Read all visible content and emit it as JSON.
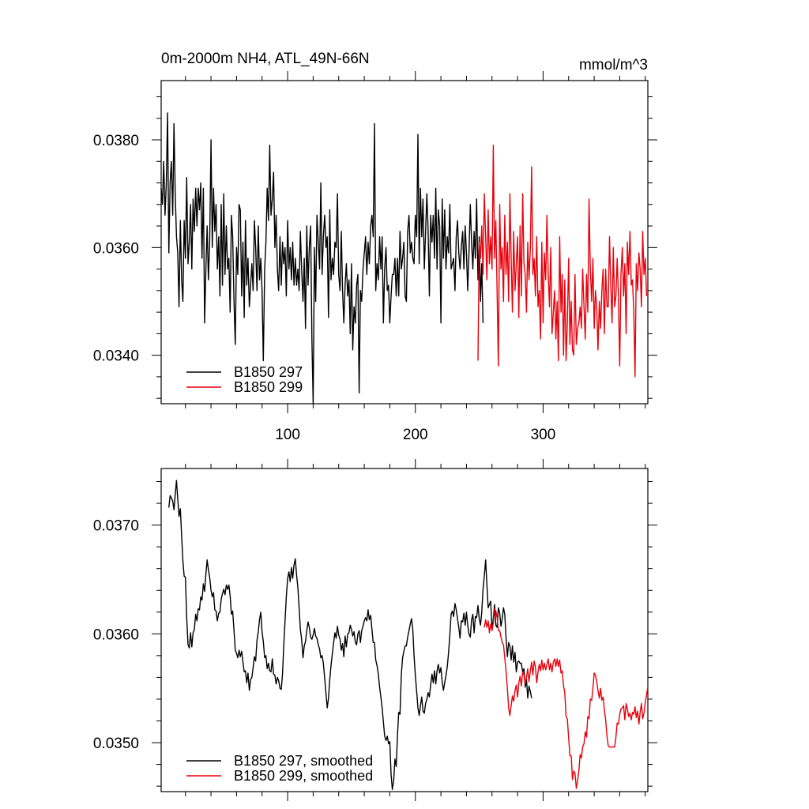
{
  "chart_data": [
    {
      "type": "line",
      "title_left": "0m-2000m NH4, ATL_49N-66N",
      "title_right": "mmol/m^3",
      "xlim": [
        1,
        382
      ],
      "ylim": [
        0.0331,
        0.0391
      ],
      "x_ticks": [
        100,
        200,
        300
      ],
      "x_tick_labels": [
        "100",
        "200",
        "300"
      ],
      "y_ticks": [
        0.034,
        0.036,
        0.038
      ],
      "y_tick_labels": [
        "0.0340",
        "0.0360",
        "0.0380"
      ],
      "legend_position": "bottom-left",
      "series": [
        {
          "name": "B1850 297",
          "color": "#000000",
          "x_start": 1,
          "values": [
            0.0371,
            0.0368,
            0.0376,
            0.0366,
            0.0372,
            0.0385,
            0.0359,
            0.0372,
            0.0376,
            0.0366,
            0.0383,
            0.037,
            0.0362,
            0.0359,
            0.0349,
            0.0365,
            0.0354,
            0.035,
            0.0365,
            0.0358,
            0.0373,
            0.0357,
            0.0361,
            0.0368,
            0.0356,
            0.0369,
            0.0363,
            0.0371,
            0.0364,
            0.0371,
            0.0367,
            0.0372,
            0.0358,
            0.0371,
            0.0346,
            0.0356,
            0.0364,
            0.0354,
            0.0361,
            0.038,
            0.036,
            0.0371,
            0.0363,
            0.0368,
            0.0356,
            0.0362,
            0.0351,
            0.0368,
            0.0353,
            0.037,
            0.0355,
            0.0364,
            0.0356,
            0.0358,
            0.0348,
            0.0366,
            0.0362,
            0.035,
            0.0342,
            0.036,
            0.0355,
            0.0368,
            0.0367,
            0.0351,
            0.0361,
            0.0347,
            0.0365,
            0.0353,
            0.0358,
            0.0349,
            0.0353,
            0.0357,
            0.0352,
            0.0365,
            0.036,
            0.0352,
            0.0364,
            0.0354,
            0.0358,
            0.0352,
            0.0339,
            0.0356,
            0.0361,
            0.0371,
            0.0365,
            0.0379,
            0.0366,
            0.0369,
            0.0374,
            0.036,
            0.0366,
            0.0356,
            0.0352,
            0.0362,
            0.0353,
            0.0361,
            0.0357,
            0.036,
            0.0351,
            0.0365,
            0.0356,
            0.036,
            0.0354,
            0.0361,
            0.0353,
            0.0358,
            0.0353,
            0.0356,
            0.0352,
            0.0363,
            0.0356,
            0.035,
            0.0358,
            0.0345,
            0.0364,
            0.0353,
            0.036,
            0.0364,
            0.0343,
            0.0331,
            0.036,
            0.035,
            0.0366,
            0.0361,
            0.0356,
            0.0372,
            0.0355,
            0.0362,
            0.0366,
            0.036,
            0.0362,
            0.0347,
            0.0367,
            0.0354,
            0.0358,
            0.0355,
            0.0361,
            0.036,
            0.037,
            0.0355,
            0.0352,
            0.0363,
            0.0352,
            0.0346,
            0.0353,
            0.0357,
            0.0351,
            0.0354,
            0.0344,
            0.0357,
            0.0341,
            0.0349,
            0.0346,
            0.0353,
            0.0355,
            0.0333,
            0.0352,
            0.035,
            0.0356,
            0.0359,
            0.0362,
            0.0355,
            0.0361,
            0.0357,
            0.0364,
            0.0366,
            0.0362,
            0.0383,
            0.0352,
            0.0357,
            0.0354,
            0.0362,
            0.0356,
            0.0362,
            0.0346,
            0.0356,
            0.036,
            0.0352,
            0.0353,
            0.0346,
            0.0351,
            0.0355,
            0.0355,
            0.0358,
            0.0351,
            0.0358,
            0.0351,
            0.0363,
            0.0356,
            0.0358,
            0.0361,
            0.0351,
            0.035,
            0.0363,
            0.0366,
            0.0359,
            0.0361,
            0.0358,
            0.0357,
            0.0366,
            0.0362,
            0.0381,
            0.0357,
            0.0371,
            0.0362,
            0.0369,
            0.0356,
            0.0363,
            0.037,
            0.0363,
            0.0351,
            0.0366,
            0.0361,
            0.0366,
            0.0358,
            0.0371,
            0.0356,
            0.0367,
            0.0364,
            0.0346,
            0.0369,
            0.0358,
            0.0367,
            0.0356,
            0.0362,
            0.0359,
            0.0368,
            0.0356,
            0.0357,
            0.0358,
            0.0352,
            0.0362,
            0.0365,
            0.0359,
            0.0356,
            0.036,
            0.0363,
            0.0356,
            0.0364,
            0.0359,
            0.0352,
            0.0359,
            0.0368,
            0.0361,
            0.0356,
            0.0363,
            0.0358,
            0.0369,
            0.0354,
            0.0362,
            0.035,
            0.0357,
            0.0346
          ]
        },
        {
          "name": "B1850 299",
          "color": "#e8000b",
          "x_start": 249,
          "values": [
            0.0339,
            0.0361,
            0.0358,
            0.0364,
            0.0355,
            0.037,
            0.0362,
            0.0354,
            0.0367,
            0.0357,
            0.0362,
            0.0356,
            0.0379,
            0.0358,
            0.0365,
            0.0352,
            0.0338,
            0.0368,
            0.0356,
            0.036,
            0.035,
            0.0366,
            0.0355,
            0.0361,
            0.035,
            0.037,
            0.0358,
            0.0348,
            0.0363,
            0.0352,
            0.0357,
            0.0362,
            0.0347,
            0.0364,
            0.0351,
            0.037,
            0.0357,
            0.0355,
            0.0348,
            0.0361,
            0.0354,
            0.036,
            0.0375,
            0.0355,
            0.0358,
            0.0351,
            0.0362,
            0.0349,
            0.0352,
            0.0343,
            0.0361,
            0.0346,
            0.0359,
            0.0354,
            0.0366,
            0.0355,
            0.0349,
            0.036,
            0.0344,
            0.0348,
            0.0352,
            0.0343,
            0.035,
            0.0339,
            0.0362,
            0.0348,
            0.0355,
            0.034,
            0.0354,
            0.0339,
            0.0346,
            0.0358,
            0.0342,
            0.035,
            0.0341,
            0.034,
            0.0355,
            0.0342,
            0.0345,
            0.0346,
            0.0349,
            0.0345,
            0.0356,
            0.0349,
            0.0343,
            0.0355,
            0.0348,
            0.0369,
            0.0356,
            0.035,
            0.0358,
            0.0345,
            0.0352,
            0.0349,
            0.0341,
            0.035,
            0.0345,
            0.0352,
            0.0356,
            0.0344,
            0.0356,
            0.0349,
            0.0349,
            0.0362,
            0.0353,
            0.0346,
            0.036,
            0.0349,
            0.0351,
            0.0358,
            0.0351,
            0.0338,
            0.0355,
            0.036,
            0.0351,
            0.0357,
            0.0344,
            0.0361,
            0.0355,
            0.0363,
            0.0353,
            0.0354,
            0.0348,
            0.0336,
            0.0357,
            0.0352,
            0.0359,
            0.0356,
            0.0349,
            0.0363,
            0.0355,
            0.0358,
            0.0351
          ]
        }
      ]
    },
    {
      "type": "line",
      "xlim": [
        1,
        382
      ],
      "ylim": [
        0.03455,
        0.03752
      ],
      "x_ticks": [
        100,
        200,
        300
      ],
      "y_ticks": [
        0.035,
        0.036,
        0.037
      ],
      "y_tick_labels": [
        "0.0350",
        "0.0360",
        "0.0370"
      ],
      "legend_position": "bottom-left",
      "series": [
        {
          "name": "B1850 297, smoothed",
          "color": "#000000",
          "x_start": 7,
          "values": [
            0.03716,
            0.03727,
            0.03725,
            0.03722,
            0.03714,
            0.03728,
            0.03741,
            0.03724,
            0.03708,
            0.03715,
            0.0369,
            0.03667,
            0.03653,
            0.03652,
            0.03615,
            0.0359,
            0.03587,
            0.03601,
            0.03588,
            0.03601,
            0.03604,
            0.03618,
            0.03612,
            0.03623,
            0.03622,
            0.03634,
            0.03631,
            0.03646,
            0.03639,
            0.03655,
            0.03668,
            0.03659,
            0.03652,
            0.0364,
            0.03634,
            0.03638,
            0.03622,
            0.03621,
            0.03612,
            0.03619,
            0.0362,
            0.03632,
            0.03637,
            0.03641,
            0.03636,
            0.03645,
            0.03641,
            0.03645,
            0.03635,
            0.03618,
            0.03621,
            0.03603,
            0.03585,
            0.03582,
            0.03578,
            0.03585,
            0.03579,
            0.03584,
            0.03574,
            0.03565,
            0.03566,
            0.03555,
            0.03564,
            0.03548,
            0.03558,
            0.0356,
            0.03569,
            0.03579,
            0.03575,
            0.03594,
            0.03602,
            0.03613,
            0.0362,
            0.03602,
            0.03593,
            0.03578,
            0.0358,
            0.03568,
            0.03573,
            0.03566,
            0.03565,
            0.03577,
            0.03563,
            0.03562,
            0.03554,
            0.0356,
            0.03557,
            0.0355,
            0.03549,
            0.03563,
            0.0359,
            0.03612,
            0.03634,
            0.03651,
            0.03657,
            0.03648,
            0.03661,
            0.03651,
            0.03663,
            0.03669,
            0.03654,
            0.03643,
            0.03624,
            0.03604,
            0.03595,
            0.03578,
            0.03589,
            0.03593,
            0.03603,
            0.03611,
            0.03606,
            0.03597,
            0.03595,
            0.03599,
            0.03605,
            0.03598,
            0.03596,
            0.0359,
            0.03586,
            0.03578,
            0.0358,
            0.03573,
            0.03559,
            0.03545,
            0.03532,
            0.03541,
            0.03558,
            0.03571,
            0.03582,
            0.03592,
            0.03601,
            0.03596,
            0.03607,
            0.03599,
            0.03595,
            0.03585,
            0.03591,
            0.03579,
            0.03598,
            0.03588,
            0.036,
            0.03601,
            0.03608,
            0.03604,
            0.03598,
            0.03602,
            0.03592,
            0.0359,
            0.036,
            0.03603,
            0.03592,
            0.03603,
            0.03607,
            0.03612,
            0.03615,
            0.03612,
            0.03622,
            0.03613,
            0.03617,
            0.03604,
            0.03592,
            0.03592,
            0.03576,
            0.03571,
            0.03563,
            0.03551,
            0.03542,
            0.03532,
            0.03519,
            0.03506,
            0.03502,
            0.03506,
            0.03499,
            0.03501,
            0.03471,
            0.03457,
            0.03465,
            0.03485,
            0.03478,
            0.03507,
            0.03528,
            0.03526,
            0.03563,
            0.03578,
            0.03584,
            0.03589,
            0.03589,
            0.03597,
            0.03603,
            0.03609,
            0.03614,
            0.03604,
            0.0358,
            0.03562,
            0.03547,
            0.03532,
            0.03525,
            0.03534,
            0.03542,
            0.03529,
            0.03527,
            0.03536,
            0.0354,
            0.03546,
            0.03542,
            0.03553,
            0.03563,
            0.03555,
            0.03566,
            0.03554,
            0.03566,
            0.03572,
            0.03564,
            0.03569,
            0.03556,
            0.03548,
            0.03555,
            0.03562,
            0.0357,
            0.03583,
            0.03599,
            0.03618,
            0.03621,
            0.03616,
            0.03628,
            0.03622,
            0.03614,
            0.03606,
            0.03596,
            0.03612,
            0.03611,
            0.03619,
            0.03608,
            0.0362,
            0.03608,
            0.036,
            0.03597,
            0.03613,
            0.03618,
            0.03601,
            0.03616,
            0.03615,
            0.03626,
            0.03614,
            0.03608,
            0.0362,
            0.03641,
            0.03653,
            0.03668,
            0.03645,
            0.03624,
            0.03627,
            0.0363,
            0.03604,
            0.03614,
            0.03627,
            0.03608,
            0.03606,
            0.03624,
            0.03619,
            0.03607,
            0.03614,
            0.03624,
            0.03618,
            0.03597,
            0.03579,
            0.03592,
            0.03589,
            0.03576,
            0.03589,
            0.03574,
            0.03583,
            0.03565,
            0.03574,
            0.03575,
            0.03573,
            0.03573,
            0.03565,
            0.03568,
            0.03551,
            0.03558,
            0.03541,
            0.03552,
            0.03547,
            0.03541
          ]
        },
        {
          "name": "B1850 299, smoothed",
          "color": "#e8000b",
          "x_start": 254,
          "values": [
            0.03606,
            0.03613,
            0.03606,
            0.03612,
            0.03601,
            0.03609,
            0.03603,
            0.0361,
            0.03623,
            0.03621,
            0.03615,
            0.03603,
            0.03603,
            0.03597,
            0.03592,
            0.0359,
            0.03578,
            0.03566,
            0.0355,
            0.03532,
            0.03525,
            0.03534,
            0.03543,
            0.03538,
            0.03548,
            0.03553,
            0.03542,
            0.03555,
            0.03561,
            0.03552,
            0.03565,
            0.03562,
            0.03554,
            0.0356,
            0.03568,
            0.03556,
            0.03566,
            0.03574,
            0.03562,
            0.03575,
            0.0357,
            0.03555,
            0.03565,
            0.03572,
            0.03566,
            0.03576,
            0.03567,
            0.03573,
            0.03567,
            0.03572,
            0.03577,
            0.03567,
            0.03573,
            0.03565,
            0.03574,
            0.03577,
            0.0357,
            0.03577,
            0.0357,
            0.03576,
            0.03564,
            0.03566,
            0.03552,
            0.03546,
            0.03524,
            0.03522,
            0.03504,
            0.03488,
            0.03488,
            0.03466,
            0.03474,
            0.03472,
            0.03458,
            0.03465,
            0.03474,
            0.03489,
            0.03486,
            0.03496,
            0.03499,
            0.0351,
            0.03505,
            0.03524,
            0.03522,
            0.0354,
            0.03539,
            0.0355,
            0.03564,
            0.03562,
            0.03556,
            0.03548,
            0.03541,
            0.0355,
            0.03539,
            0.03542,
            0.0353,
            0.03521,
            0.03506,
            0.03497,
            0.03496,
            0.03496,
            0.03496,
            0.03496,
            0.03496,
            0.03505,
            0.03518,
            0.03517,
            0.03526,
            0.03531,
            0.03532,
            0.03534,
            0.03521,
            0.03536,
            0.03531,
            0.03524,
            0.03527,
            0.03521,
            0.03528,
            0.03526,
            0.03533,
            0.03523,
            0.03529,
            0.03517,
            0.03528,
            0.03536,
            0.03522,
            0.03527,
            0.03537,
            0.03544,
            0.03551
          ]
        }
      ]
    }
  ]
}
